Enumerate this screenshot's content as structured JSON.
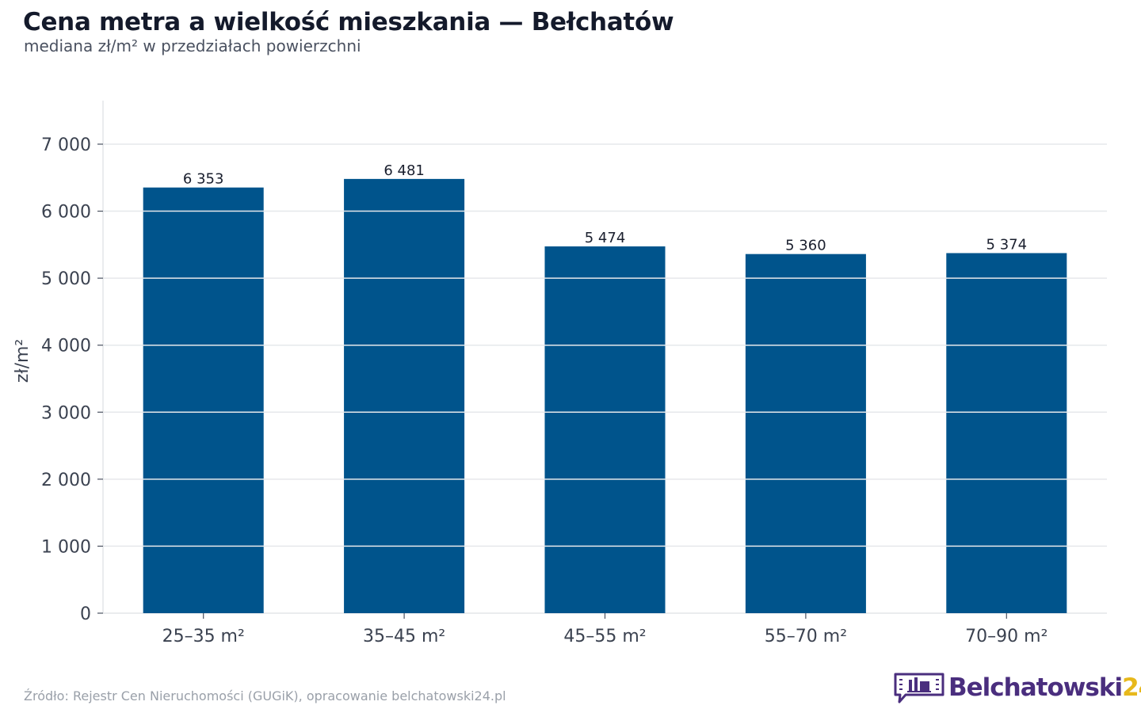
{
  "header": {
    "title": "Cena metra a wielkość mieszkania — Bełchatów",
    "subtitle": "mediana zł/m² w przedziałach powierzchni"
  },
  "chart_data": {
    "type": "bar",
    "categories": [
      "25–35 m²",
      "35–45 m²",
      "45–55 m²",
      "55–70 m²",
      "70–90 m²"
    ],
    "values": [
      6353,
      6481,
      5474,
      5360,
      5374
    ],
    "value_labels": [
      "6 353",
      "6 481",
      "5 474",
      "5 360",
      "5 374"
    ],
    "ylabel": "zł/m²",
    "xlabel": "",
    "ylim": [
      0,
      7650
    ],
    "yticks": [
      0,
      1000,
      2000,
      3000,
      4000,
      5000,
      6000,
      7000
    ],
    "ytick_labels": [
      "0",
      "1 000",
      "2 000",
      "3 000",
      "4 000",
      "5 000",
      "6 000",
      "7 000"
    ],
    "grid": true,
    "legend": "none",
    "bar_color": "#00548c"
  },
  "footer": {
    "source": "Źródło: Rejestr Cen Nieruchomości (GUGiK), opracowanie belchatowski24.pl"
  },
  "logo": {
    "text_main": "Belchatowski",
    "text_suffix": "24",
    "color_main": "#4a2e7e",
    "color_suffix": "#e7b81c",
    "icon": "speech-bubble-factory-icon"
  }
}
